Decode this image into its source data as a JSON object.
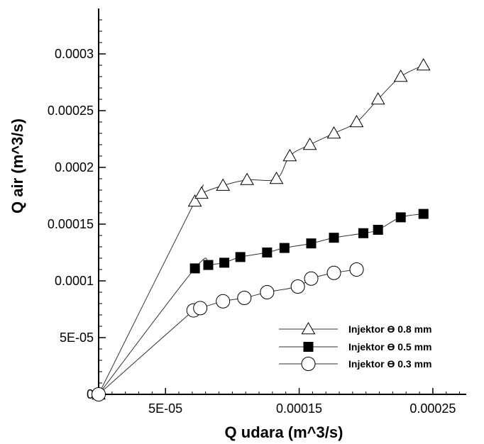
{
  "chart_data": {
    "type": "line",
    "xlabel": "Q udara (m^3/s)",
    "ylabel": "Q air (m^3/s)",
    "xlim": [
      0,
      0.000275
    ],
    "ylim": [
      0,
      0.00034
    ],
    "x_ticks": [
      5e-05,
      0.00015,
      0.00025
    ],
    "x_tick_labels": [
      "5E-05",
      "0.00015",
      "0.00025"
    ],
    "y_ticks": [
      0,
      5e-05,
      0.0001,
      0.00015,
      0.0002,
      0.00025,
      0.0003
    ],
    "y_tick_labels": [
      "0",
      "5E-05",
      "0.0001",
      "0.00015",
      "0.0002",
      "0.00025",
      "0.0003"
    ],
    "grid": false,
    "legend_position": "bottom-right",
    "series": [
      {
        "name": "Injektor  Ө 0.8 mm",
        "marker": "triangle-open",
        "x": [
          0,
          7.2e-05,
          7.7e-05,
          9.3e-05,
          0.000111,
          0.000133,
          0.000143,
          0.000158,
          0.000176,
          0.000193,
          0.000209,
          0.000226,
          0.000243
        ],
        "y": [
          0,
          0.00017,
          0.000177,
          0.000184,
          0.000189,
          0.00019,
          0.00021,
          0.00022,
          0.00023,
          0.00024,
          0.00026,
          0.00028,
          0.00029
        ]
      },
      {
        "name": "Injektor  Ө 0.5 mm",
        "marker": "square-filled",
        "x": [
          0,
          7.2e-05,
          8.2e-05,
          9.4e-05,
          0.000106,
          0.000126,
          0.000139,
          0.000159,
          0.000176,
          0.000198,
          0.000209,
          0.000226,
          0.000243
        ],
        "y": [
          0,
          0.000111,
          0.000114,
          0.000116,
          0.000121,
          0.000125,
          0.000129,
          0.000133,
          0.000138,
          0.000142,
          0.000145,
          0.000156,
          0.000159
        ]
      },
      {
        "name": "Injektor  Ө 0.3 mm",
        "marker": "circle-open",
        "x": [
          0,
          7.1e-05,
          7.6e-05,
          9.3e-05,
          0.000109,
          0.000126,
          0.000149,
          0.000159,
          0.000176,
          0.000193
        ],
        "y": [
          0,
          7.4e-05,
          7.6e-05,
          8.2e-05,
          8.5e-05,
          9e-05,
          9.5e-05,
          0.000102,
          0.000107,
          0.00011
        ]
      }
    ]
  }
}
